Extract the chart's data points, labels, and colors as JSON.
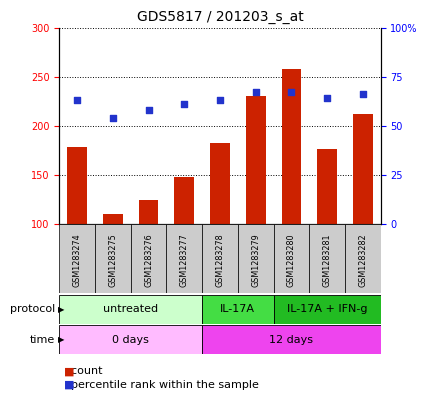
{
  "title": "GDS5817 / 201203_s_at",
  "samples": [
    "GSM1283274",
    "GSM1283275",
    "GSM1283276",
    "GSM1283277",
    "GSM1283278",
    "GSM1283279",
    "GSM1283280",
    "GSM1283281",
    "GSM1283282"
  ],
  "counts": [
    178,
    110,
    124,
    148,
    182,
    230,
    258,
    176,
    212
  ],
  "percentile_vals": [
    63,
    54,
    58,
    61,
    63,
    67,
    67,
    64,
    66
  ],
  "ylim_left": [
    100,
    300
  ],
  "ylim_right": [
    0,
    100
  ],
  "yticks_left": [
    100,
    150,
    200,
    250,
    300
  ],
  "yticks_right": [
    0,
    25,
    50,
    75,
    100
  ],
  "ytick_labels_left": [
    "100",
    "150",
    "200",
    "250",
    "300"
  ],
  "ytick_labels_right": [
    "0",
    "25",
    "50",
    "75",
    "100%"
  ],
  "bar_color": "#cc2200",
  "dot_color": "#2233cc",
  "protocol_groups": [
    {
      "label": "untreated",
      "start": 0,
      "end": 4,
      "color": "#ccffcc"
    },
    {
      "label": "IL-17A",
      "start": 4,
      "end": 6,
      "color": "#44dd44"
    },
    {
      "label": "IL-17A + IFN-g",
      "start": 6,
      "end": 9,
      "color": "#22bb22"
    }
  ],
  "time_groups": [
    {
      "label": "0 days",
      "start": 0,
      "end": 4,
      "color": "#ffbbff"
    },
    {
      "label": "12 days",
      "start": 4,
      "end": 9,
      "color": "#ee44ee"
    }
  ],
  "sample_box_color": "#cccccc",
  "tick_fontsize": 7,
  "title_fontsize": 10,
  "annot_fontsize": 8,
  "sample_fontsize": 5.8
}
